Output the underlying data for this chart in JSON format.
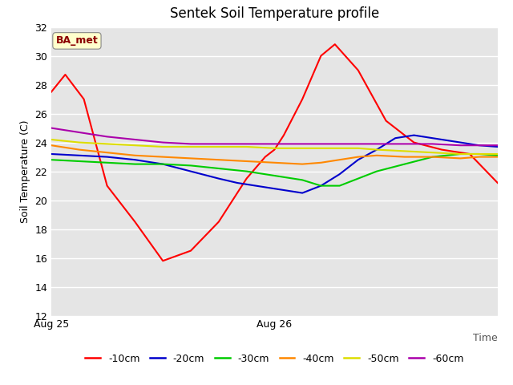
{
  "title": "Sentek Soil Temperature profile",
  "ylabel": "Soil Temperature (C)",
  "ylim": [
    12,
    32
  ],
  "yticks": [
    12,
    14,
    16,
    18,
    20,
    22,
    24,
    26,
    28,
    30,
    32
  ],
  "xlim": [
    0,
    96
  ],
  "xtick_positions": [
    0,
    48
  ],
  "xtick_labels": [
    "Aug 25",
    "Aug 26"
  ],
  "time_label": "Time",
  "background_color": "#e5e5e5",
  "grid_color": "#ffffff",
  "annotation_text": "BA_met",
  "annotation_color": "#8b0000",
  "annotation_bg": "#ffffcc",
  "series": {
    "-10cm": {
      "color": "#ff0000",
      "points": [
        [
          0,
          27.5
        ],
        [
          3,
          28.7
        ],
        [
          7,
          27.0
        ],
        [
          12,
          21.0
        ],
        [
          18,
          18.5
        ],
        [
          24,
          15.8
        ],
        [
          30,
          16.5
        ],
        [
          36,
          18.5
        ],
        [
          42,
          21.5
        ],
        [
          46,
          23.0
        ],
        [
          48,
          23.5
        ],
        [
          50,
          24.5
        ],
        [
          54,
          27.0
        ],
        [
          58,
          30.0
        ],
        [
          61,
          30.8
        ],
        [
          66,
          29.0
        ],
        [
          72,
          25.5
        ],
        [
          78,
          24.0
        ],
        [
          84,
          23.5
        ],
        [
          90,
          23.2
        ],
        [
          96,
          21.2
        ]
      ]
    },
    "-20cm": {
      "color": "#0000cc",
      "points": [
        [
          0,
          23.2
        ],
        [
          6,
          23.1
        ],
        [
          12,
          23.0
        ],
        [
          18,
          22.8
        ],
        [
          24,
          22.5
        ],
        [
          30,
          22.0
        ],
        [
          36,
          21.5
        ],
        [
          40,
          21.2
        ],
        [
          44,
          21.0
        ],
        [
          48,
          20.8
        ],
        [
          52,
          20.6
        ],
        [
          54,
          20.5
        ],
        [
          58,
          21.0
        ],
        [
          62,
          21.8
        ],
        [
          66,
          22.8
        ],
        [
          70,
          23.5
        ],
        [
          74,
          24.3
        ],
        [
          78,
          24.5
        ],
        [
          82,
          24.3
        ],
        [
          88,
          24.0
        ],
        [
          92,
          23.8
        ],
        [
          96,
          23.7
        ]
      ]
    },
    "-30cm": {
      "color": "#00cc00",
      "points": [
        [
          0,
          22.8
        ],
        [
          6,
          22.7
        ],
        [
          12,
          22.6
        ],
        [
          18,
          22.5
        ],
        [
          24,
          22.5
        ],
        [
          30,
          22.4
        ],
        [
          36,
          22.2
        ],
        [
          42,
          22.0
        ],
        [
          48,
          21.7
        ],
        [
          54,
          21.4
        ],
        [
          58,
          21.0
        ],
        [
          62,
          21.0
        ],
        [
          66,
          21.5
        ],
        [
          70,
          22.0
        ],
        [
          76,
          22.5
        ],
        [
          82,
          23.0
        ],
        [
          88,
          23.2
        ],
        [
          92,
          23.2
        ],
        [
          96,
          23.1
        ]
      ]
    },
    "-40cm": {
      "color": "#ff8800",
      "points": [
        [
          0,
          23.8
        ],
        [
          6,
          23.5
        ],
        [
          12,
          23.3
        ],
        [
          18,
          23.1
        ],
        [
          24,
          23.0
        ],
        [
          30,
          22.9
        ],
        [
          36,
          22.8
        ],
        [
          42,
          22.7
        ],
        [
          48,
          22.6
        ],
        [
          54,
          22.5
        ],
        [
          58,
          22.6
        ],
        [
          62,
          22.8
        ],
        [
          66,
          23.0
        ],
        [
          70,
          23.1
        ],
        [
          76,
          23.0
        ],
        [
          82,
          23.0
        ],
        [
          88,
          22.9
        ],
        [
          92,
          23.0
        ],
        [
          96,
          23.0
        ]
      ]
    },
    "-50cm": {
      "color": "#dddd00",
      "points": [
        [
          0,
          24.2
        ],
        [
          6,
          24.0
        ],
        [
          12,
          23.9
        ],
        [
          18,
          23.8
        ],
        [
          24,
          23.7
        ],
        [
          30,
          23.7
        ],
        [
          36,
          23.7
        ],
        [
          42,
          23.7
        ],
        [
          48,
          23.6
        ],
        [
          54,
          23.6
        ],
        [
          58,
          23.6
        ],
        [
          62,
          23.6
        ],
        [
          66,
          23.6
        ],
        [
          70,
          23.5
        ],
        [
          76,
          23.4
        ],
        [
          82,
          23.3
        ],
        [
          88,
          23.2
        ],
        [
          92,
          23.2
        ],
        [
          96,
          23.2
        ]
      ]
    },
    "-60cm": {
      "color": "#aa00aa",
      "points": [
        [
          0,
          25.0
        ],
        [
          6,
          24.7
        ],
        [
          12,
          24.4
        ],
        [
          18,
          24.2
        ],
        [
          24,
          24.0
        ],
        [
          30,
          23.9
        ],
        [
          36,
          23.9
        ],
        [
          42,
          23.9
        ],
        [
          48,
          23.9
        ],
        [
          54,
          23.9
        ],
        [
          58,
          23.9
        ],
        [
          62,
          23.9
        ],
        [
          66,
          23.9
        ],
        [
          70,
          23.9
        ],
        [
          76,
          23.9
        ],
        [
          82,
          23.9
        ],
        [
          88,
          23.8
        ],
        [
          92,
          23.8
        ],
        [
          96,
          23.8
        ]
      ]
    }
  }
}
